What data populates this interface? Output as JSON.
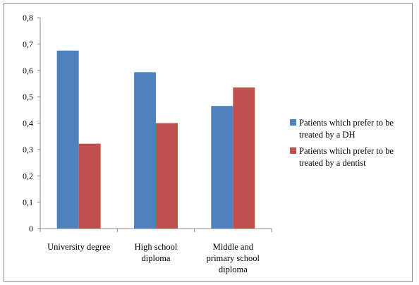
{
  "chart_data": {
    "type": "bar",
    "categories": [
      [
        "University degree"
      ],
      [
        "High school",
        "diploma"
      ],
      [
        "Middle and",
        "primary school",
        "diploma"
      ]
    ],
    "series": [
      {
        "name": [
          "Patients which prefer to be",
          "treated by a DH"
        ],
        "color": "#4f81bd",
        "values": [
          0.675,
          0.593,
          0.465
        ]
      },
      {
        "name": [
          "Patients which prefer to be",
          "treated by a dentist"
        ],
        "color": "#c0504d",
        "values": [
          0.322,
          0.4,
          0.535
        ]
      }
    ],
    "ylim": [
      0,
      0.8
    ],
    "yticks": [
      0,
      0.1,
      0.2,
      0.3,
      0.4,
      0.5,
      0.6,
      0.7,
      0.8
    ],
    "ytick_labels": [
      "0",
      "0,1",
      "0,2",
      "0,3",
      "0,4",
      "0,5",
      "0,6",
      "0,7",
      "0,8"
    ],
    "grid": false,
    "legend": "right"
  }
}
